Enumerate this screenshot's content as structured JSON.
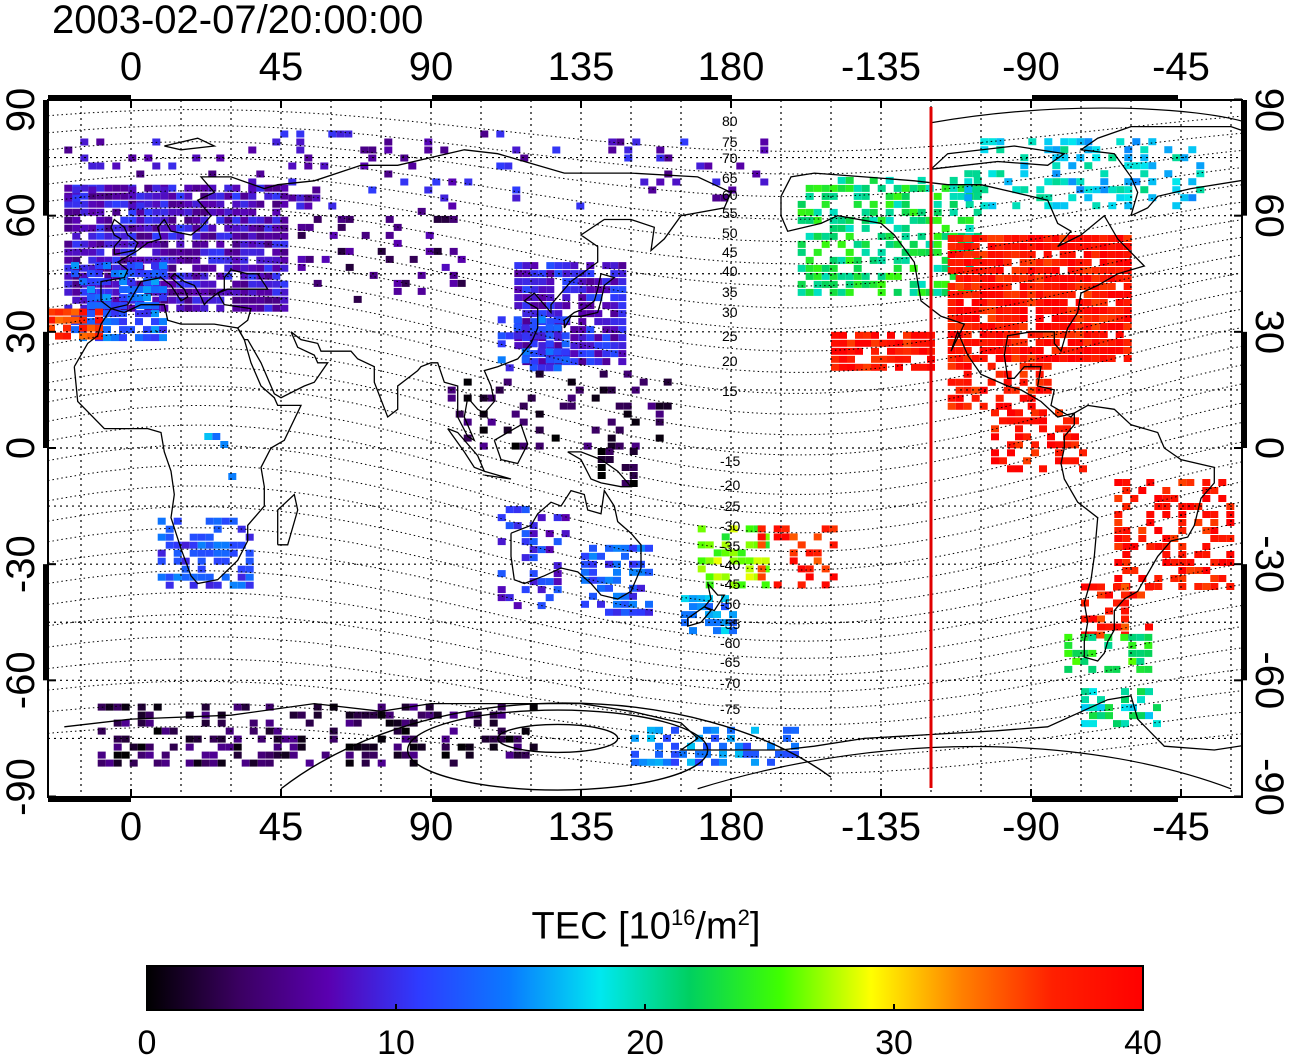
{
  "title": "2003-02-07/20:00:00",
  "map": {
    "top_lon_ticks": [
      "0",
      "45",
      "90",
      "135",
      "180",
      "-135",
      "-90",
      "-45"
    ],
    "bottom_lon_ticks": [
      "0",
      "45",
      "90",
      "135",
      "180",
      "-135",
      "-90",
      "-45"
    ],
    "left_lat_ticks": [
      "90",
      "60",
      "30",
      "0",
      "-30",
      "-60",
      "-90"
    ],
    "right_lat_ticks": [
      "90",
      "60",
      "30",
      "0",
      "-30",
      "-60",
      "-90"
    ],
    "magnetic_latitude_labels_north": [
      "80",
      "75",
      "70",
      "65",
      "60",
      "55",
      "50",
      "45",
      "40",
      "35",
      "30",
      "25",
      "20",
      "15"
    ],
    "magnetic_latitude_labels_south": [
      "-15",
      "-20",
      "-25",
      "-30",
      "-35",
      "-40",
      "-45",
      "-50",
      "-55",
      "-60",
      "-65",
      "-70",
      "-75"
    ],
    "meridian_marker_lon": -120,
    "meridian_marker_color": "#e00000"
  },
  "colorbar": {
    "label_main": "TEC  [10",
    "label_sup1": "16",
    "label_mid": "/m",
    "label_sup2": "2",
    "label_end": "]",
    "min": 0,
    "max": 40,
    "tick_labels": [
      "0",
      "10",
      "20",
      "30",
      "40"
    ],
    "colors": [
      "#000000",
      "#3a0060",
      "#5a00b0",
      "#2e3cff",
      "#0a7aff",
      "#00e8f0",
      "#00d060",
      "#40ff00",
      "#ffff00",
      "#ff8000",
      "#ff2000",
      "#ff0000"
    ]
  }
}
